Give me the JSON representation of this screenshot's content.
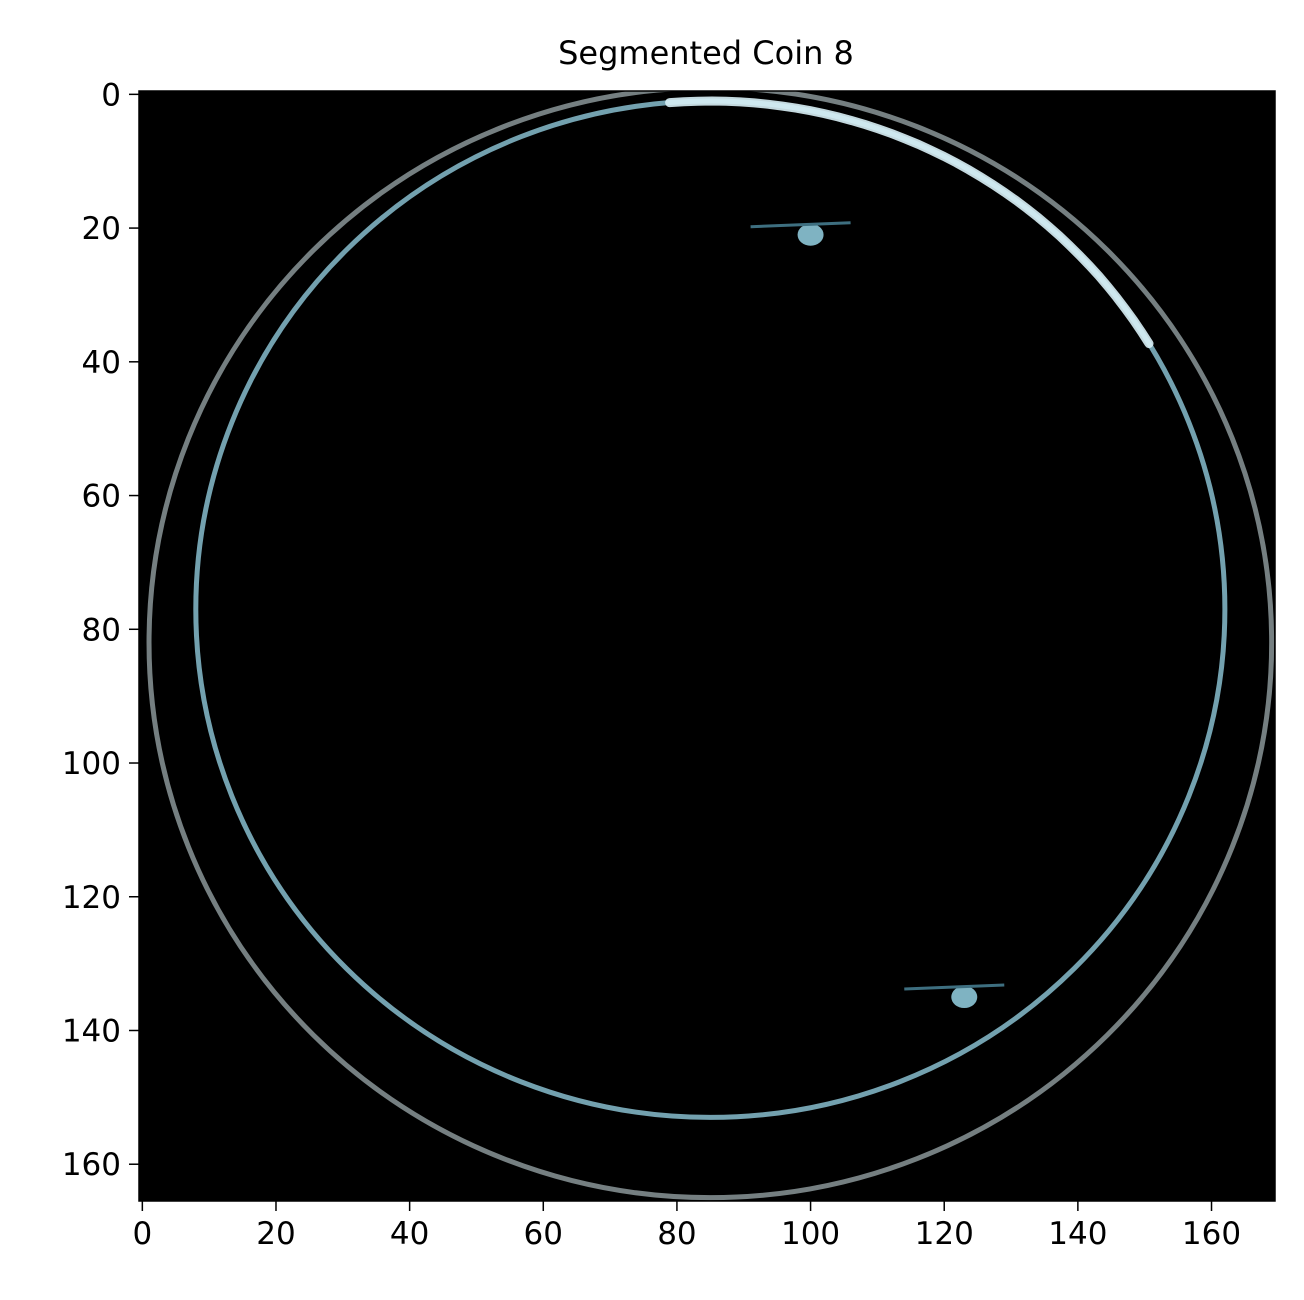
{
  "title": "Segmented Coin 8",
  "colors": {
    "background": "#000000",
    "edge_bright": "#d8f0f6",
    "edge_mid": "#7fb3c2",
    "edge_dark": "#3e6f80",
    "edge_gray": "#8a9598"
  },
  "chart_data": {
    "type": "image",
    "title": "Segmented Coin 8",
    "xlabel": "",
    "ylabel": "",
    "xlim": [
      -0.5,
      169.5
    ],
    "ylim": [
      165.5,
      -0.5
    ],
    "x_ticks": [
      0,
      20,
      40,
      60,
      80,
      100,
      120,
      140,
      160
    ],
    "y_ticks": [
      0,
      20,
      40,
      60,
      80,
      100,
      120,
      140,
      160
    ],
    "grid": false,
    "content": "coin edge outline on black background",
    "outer_ring": {
      "cx": 85,
      "cy": 82,
      "rx": 84,
      "ry": 83
    },
    "inner_ring": {
      "cx": 85,
      "cy": 77,
      "rx": 77,
      "ry": 76
    },
    "specks": [
      {
        "x": 100,
        "y": 21
      },
      {
        "x": 123,
        "y": 135
      }
    ]
  }
}
